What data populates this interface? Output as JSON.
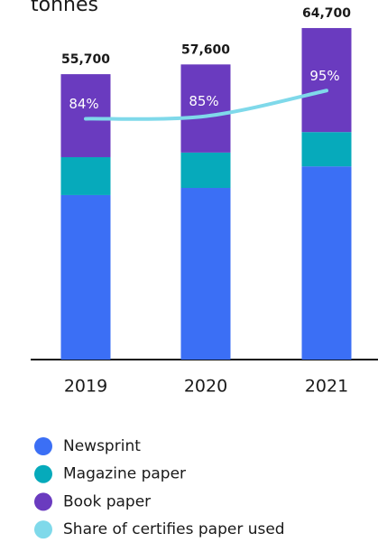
{
  "chart_data": {
    "type": "bar",
    "stacked": true,
    "title": "tonnes",
    "categories": [
      "2019",
      "2020",
      "2021"
    ],
    "series": [
      {
        "name": "Newsprint",
        "color": "#3b6ff5",
        "values": [
          32100,
          33500,
          37700
        ]
      },
      {
        "name": "Magazine paper",
        "color": "#06aabb",
        "values": [
          7400,
          6900,
          6700
        ]
      },
      {
        "name": "Book paper",
        "color": "#6a3bbf",
        "values": [
          16200,
          17200,
          20300
        ]
      },
      {
        "name": "Share of certifies paper used",
        "type": "line",
        "axis": "y2",
        "color": "#7fd9ea",
        "values": [
          84,
          85,
          95
        ],
        "value_labels": [
          "84%",
          "85%",
          "95%"
        ]
      }
    ],
    "totals": {
      "values": [
        55700,
        57600,
        64700
      ],
      "value_labels": [
        "55,700",
        "57,600",
        "64,700"
      ]
    },
    "ylim": [
      0,
      70000
    ],
    "y2lim": [
      -10,
      130
    ]
  }
}
